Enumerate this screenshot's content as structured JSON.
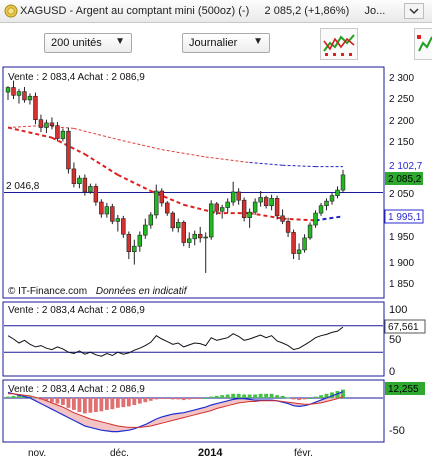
{
  "window": {
    "title": "XAGUSD - Argent au comptant mini (500oz) (-)",
    "price": "2 085,2 (+1,86%)",
    "trailing": "Jo..."
  },
  "toolbar": {
    "units_label": "200 unités",
    "period_label": "Journalier"
  },
  "icons": {
    "symbol": "silver-coin-icon",
    "dropdown": "dropdown-chevron-icon",
    "indicators": "indicators-chart-icon",
    "side": "add-chart-icon"
  },
  "colors": {
    "up": "#22b822",
    "down": "#d43030",
    "ma_short": "#e02020",
    "ma_long_up": "#2020c8",
    "ma_long_down": "#e04040",
    "grid": "#1a1a99",
    "price_box": "#2ea82e",
    "ma_box": "#2a2ad0"
  },
  "main_panel": {
    "info": "Vente : 2 083,4  Achat : 2 086,9",
    "hline_label": "2 046,8",
    "y_ticks": [
      "2 300",
      "2 250",
      "2 200",
      "2 150",
      "2 100",
      "2 050",
      "2 000",
      "1 950",
      "1 900",
      "1 850"
    ],
    "price_badge": "2 085,2",
    "ma_long_badge": "2 102,7",
    "ma_short_badge": "1 995,1",
    "footer": "IT-Finance.com",
    "footer_note": "Données en indicatif"
  },
  "rsi_panel": {
    "info": "Vente : 2 083,4  Achat : 2 086,9",
    "y_ticks": [
      "100",
      "50",
      "0"
    ],
    "value_badge": "67,561"
  },
  "macd_panel": {
    "info": "Vente : 2 083,4  Achat : 2 086,9",
    "y_ticks": [
      "-50"
    ],
    "value_badge": "12,255"
  },
  "x_axis": {
    "labels": [
      "nov.",
      "déc.",
      "2014",
      "févr."
    ]
  },
  "chart_data": {
    "type": "candlestick",
    "title": "XAGUSD - Argent au comptant mini (500oz) (-)",
    "ylim": [
      1850,
      2300
    ],
    "horizontal_line": 2046.8,
    "last_price": 2085.2,
    "x_labels": [
      "nov.",
      "déc.",
      "2014",
      "févr."
    ],
    "candles": [
      {
        "o": 2265,
        "h": 2278,
        "l": 2248,
        "c": 2275
      },
      {
        "o": 2275,
        "h": 2290,
        "l": 2250,
        "c": 2258
      },
      {
        "o": 2258,
        "h": 2272,
        "l": 2240,
        "c": 2266
      },
      {
        "o": 2266,
        "h": 2276,
        "l": 2242,
        "c": 2248
      },
      {
        "o": 2248,
        "h": 2262,
        "l": 2238,
        "c": 2256
      },
      {
        "o": 2256,
        "h": 2264,
        "l": 2195,
        "c": 2205
      },
      {
        "o": 2205,
        "h": 2216,
        "l": 2178,
        "c": 2188
      },
      {
        "o": 2188,
        "h": 2205,
        "l": 2176,
        "c": 2198
      },
      {
        "o": 2198,
        "h": 2210,
        "l": 2184,
        "c": 2192
      },
      {
        "o": 2192,
        "h": 2200,
        "l": 2158,
        "c": 2164
      },
      {
        "o": 2164,
        "h": 2186,
        "l": 2158,
        "c": 2180
      },
      {
        "o": 2180,
        "h": 2188,
        "l": 2088,
        "c": 2098
      },
      {
        "o": 2098,
        "h": 2112,
        "l": 2058,
        "c": 2066
      },
      {
        "o": 2066,
        "h": 2084,
        "l": 2056,
        "c": 2078
      },
      {
        "o": 2078,
        "h": 2086,
        "l": 2040,
        "c": 2048
      },
      {
        "o": 2048,
        "h": 2066,
        "l": 2044,
        "c": 2060
      },
      {
        "o": 2060,
        "h": 2066,
        "l": 2018,
        "c": 2026
      },
      {
        "o": 2026,
        "h": 2032,
        "l": 1992,
        "c": 2000
      },
      {
        "o": 2000,
        "h": 2024,
        "l": 1992,
        "c": 2016
      },
      {
        "o": 2016,
        "h": 2022,
        "l": 1978,
        "c": 1984
      },
      {
        "o": 1984,
        "h": 1998,
        "l": 1962,
        "c": 1990
      },
      {
        "o": 1990,
        "h": 1996,
        "l": 1948,
        "c": 1956
      },
      {
        "o": 1956,
        "h": 1962,
        "l": 1902,
        "c": 1918
      },
      {
        "o": 1918,
        "h": 1944,
        "l": 1890,
        "c": 1930
      },
      {
        "o": 1930,
        "h": 1962,
        "l": 1918,
        "c": 1954
      },
      {
        "o": 1954,
        "h": 1990,
        "l": 1946,
        "c": 1976
      },
      {
        "o": 1976,
        "h": 2004,
        "l": 1968,
        "c": 1998
      },
      {
        "o": 1998,
        "h": 2064,
        "l": 1990,
        "c": 2050
      },
      {
        "o": 2050,
        "h": 2056,
        "l": 2016,
        "c": 2024
      },
      {
        "o": 2024,
        "h": 2028,
        "l": 1996,
        "c": 2002
      },
      {
        "o": 2002,
        "h": 2006,
        "l": 1962,
        "c": 1970
      },
      {
        "o": 1970,
        "h": 1990,
        "l": 1960,
        "c": 1982
      },
      {
        "o": 1982,
        "h": 1986,
        "l": 1930,
        "c": 1938
      },
      {
        "o": 1938,
        "h": 1960,
        "l": 1926,
        "c": 1946
      },
      {
        "o": 1946,
        "h": 1964,
        "l": 1932,
        "c": 1956
      },
      {
        "o": 1956,
        "h": 1972,
        "l": 1938,
        "c": 1948
      },
      {
        "o": 1948,
        "h": 1960,
        "l": 1872,
        "c": 1950
      },
      {
        "o": 1950,
        "h": 2030,
        "l": 1944,
        "c": 2022
      },
      {
        "o": 2022,
        "h": 2026,
        "l": 1998,
        "c": 2006
      },
      {
        "o": 2006,
        "h": 2020,
        "l": 1990,
        "c": 2014
      },
      {
        "o": 2014,
        "h": 2034,
        "l": 2002,
        "c": 2026
      },
      {
        "o": 2026,
        "h": 2070,
        "l": 2018,
        "c": 2048
      },
      {
        "o": 2048,
        "h": 2056,
        "l": 2020,
        "c": 2030
      },
      {
        "o": 2030,
        "h": 2036,
        "l": 1984,
        "c": 1992
      },
      {
        "o": 1992,
        "h": 2012,
        "l": 1970,
        "c": 2004
      },
      {
        "o": 2004,
        "h": 2034,
        "l": 1998,
        "c": 2026
      },
      {
        "o": 2026,
        "h": 2050,
        "l": 2016,
        "c": 2036
      },
      {
        "o": 2036,
        "h": 2040,
        "l": 2012,
        "c": 2018
      },
      {
        "o": 2018,
        "h": 2042,
        "l": 2008,
        "c": 2034
      },
      {
        "o": 2034,
        "h": 2040,
        "l": 1988,
        "c": 1996
      },
      {
        "o": 1996,
        "h": 2010,
        "l": 1978,
        "c": 1984
      },
      {
        "o": 1984,
        "h": 1992,
        "l": 1950,
        "c": 1960
      },
      {
        "o": 1960,
        "h": 1966,
        "l": 1902,
        "c": 1914
      },
      {
        "o": 1914,
        "h": 1936,
        "l": 1900,
        "c": 1922
      },
      {
        "o": 1922,
        "h": 1956,
        "l": 1916,
        "c": 1948
      },
      {
        "o": 1948,
        "h": 1982,
        "l": 1944,
        "c": 1976
      },
      {
        "o": 1976,
        "h": 2008,
        "l": 1970,
        "c": 2002
      },
      {
        "o": 2002,
        "h": 2024,
        "l": 1996,
        "c": 2018
      },
      {
        "o": 2018,
        "h": 2034,
        "l": 2008,
        "c": 2028
      },
      {
        "o": 2028,
        "h": 2046,
        "l": 2020,
        "c": 2040
      },
      {
        "o": 2040,
        "h": 2060,
        "l": 2034,
        "c": 2052
      },
      {
        "o": 2052,
        "h": 2096,
        "l": 2048,
        "c": 2085
      }
    ],
    "ma_short": [
      {
        "i": 0,
        "v": 2188
      },
      {
        "i": 8,
        "v": 2166
      },
      {
        "i": 14,
        "v": 2130
      },
      {
        "i": 20,
        "v": 2085
      },
      {
        "i": 26,
        "v": 2050
      },
      {
        "i": 32,
        "v": 2020
      },
      {
        "i": 38,
        "v": 2002
      },
      {
        "i": 44,
        "v": 2002
      },
      {
        "i": 50,
        "v": 1990
      },
      {
        "i": 56,
        "v": 1986
      },
      {
        "i": 61,
        "v": 1995
      }
    ],
    "ma_long": [
      {
        "i": 0,
        "v": 2188,
        "trend": "up"
      },
      {
        "i": 6,
        "v": 2192,
        "trend": "down"
      },
      {
        "i": 12,
        "v": 2186,
        "trend": "down"
      },
      {
        "i": 20,
        "v": 2162,
        "trend": "down"
      },
      {
        "i": 28,
        "v": 2140,
        "trend": "down"
      },
      {
        "i": 36,
        "v": 2124,
        "trend": "down"
      },
      {
        "i": 44,
        "v": 2112,
        "trend": "down"
      },
      {
        "i": 50,
        "v": 2106,
        "trend": "up"
      },
      {
        "i": 56,
        "v": 2103,
        "trend": "up"
      },
      {
        "i": 61,
        "v": 2103,
        "trend": "up"
      }
    ],
    "rsi": {
      "ylim": [
        0,
        100
      ],
      "levels": [
        70,
        30
      ],
      "values": [
        55,
        50,
        44,
        48,
        42,
        38,
        40,
        36,
        34,
        38,
        35,
        30,
        28,
        32,
        27,
        30,
        26,
        24,
        28,
        25,
        30,
        27,
        29,
        33,
        36,
        40,
        45,
        55,
        50,
        46,
        42,
        44,
        38,
        41,
        44,
        43,
        40,
        52,
        48,
        50,
        52,
        58,
        54,
        48,
        50,
        53,
        56,
        52,
        55,
        47,
        44,
        40,
        34,
        36,
        41,
        46,
        52,
        55,
        57,
        60,
        62,
        68
      ]
    },
    "macd": {
      "ylim": [
        -60,
        20
      ],
      "histogram": [
        2,
        3,
        4,
        3,
        2,
        1,
        -2,
        -4,
        -6,
        -8,
        -10,
        -14,
        -17,
        -20,
        -22,
        -21,
        -20,
        -19,
        -17,
        -16,
        -14,
        -13,
        -12,
        -10,
        -8,
        -6,
        -4,
        -2,
        -1,
        -1,
        -2,
        -2,
        -3,
        -2,
        -1,
        -1,
        0,
        2,
        3,
        4,
        5,
        6,
        6,
        5,
        5,
        5,
        6,
        6,
        6,
        4,
        3,
        1,
        -2,
        -3,
        -2,
        0,
        2,
        4,
        6,
        8,
        10,
        12
      ],
      "macd_line": [
        8,
        6,
        4,
        2,
        0,
        -4,
        -8,
        -12,
        -16,
        -20,
        -24,
        -28,
        -32,
        -36,
        -40,
        -42,
        -44,
        -46,
        -47,
        -48,
        -48,
        -47,
        -46,
        -44,
        -41,
        -38,
        -34,
        -30,
        -27,
        -25,
        -23,
        -22,
        -21,
        -19,
        -17,
        -15,
        -13,
        -10,
        -8,
        -6,
        -4,
        -2,
        -1,
        -1,
        -2,
        -3,
        -3,
        -3,
        -3,
        -4,
        -6,
        -8,
        -11,
        -12,
        -11,
        -9,
        -6,
        -3,
        0,
        3,
        6,
        9
      ],
      "signal_line": [
        6,
        6,
        5,
        4,
        3,
        1,
        -1,
        -4,
        -7,
        -10,
        -13,
        -17,
        -21,
        -24,
        -27,
        -30,
        -32,
        -34,
        -36,
        -38,
        -40,
        -41,
        -42,
        -42,
        -42,
        -41,
        -40,
        -38,
        -36,
        -34,
        -32,
        -30,
        -28,
        -26,
        -24,
        -22,
        -20,
        -18,
        -15,
        -13,
        -11,
        -9,
        -7,
        -6,
        -5,
        -5,
        -4,
        -4,
        -4,
        -4,
        -5,
        -6,
        -7,
        -8,
        -9,
        -9,
        -8,
        -7,
        -5,
        -3,
        -1,
        2
      ]
    }
  }
}
